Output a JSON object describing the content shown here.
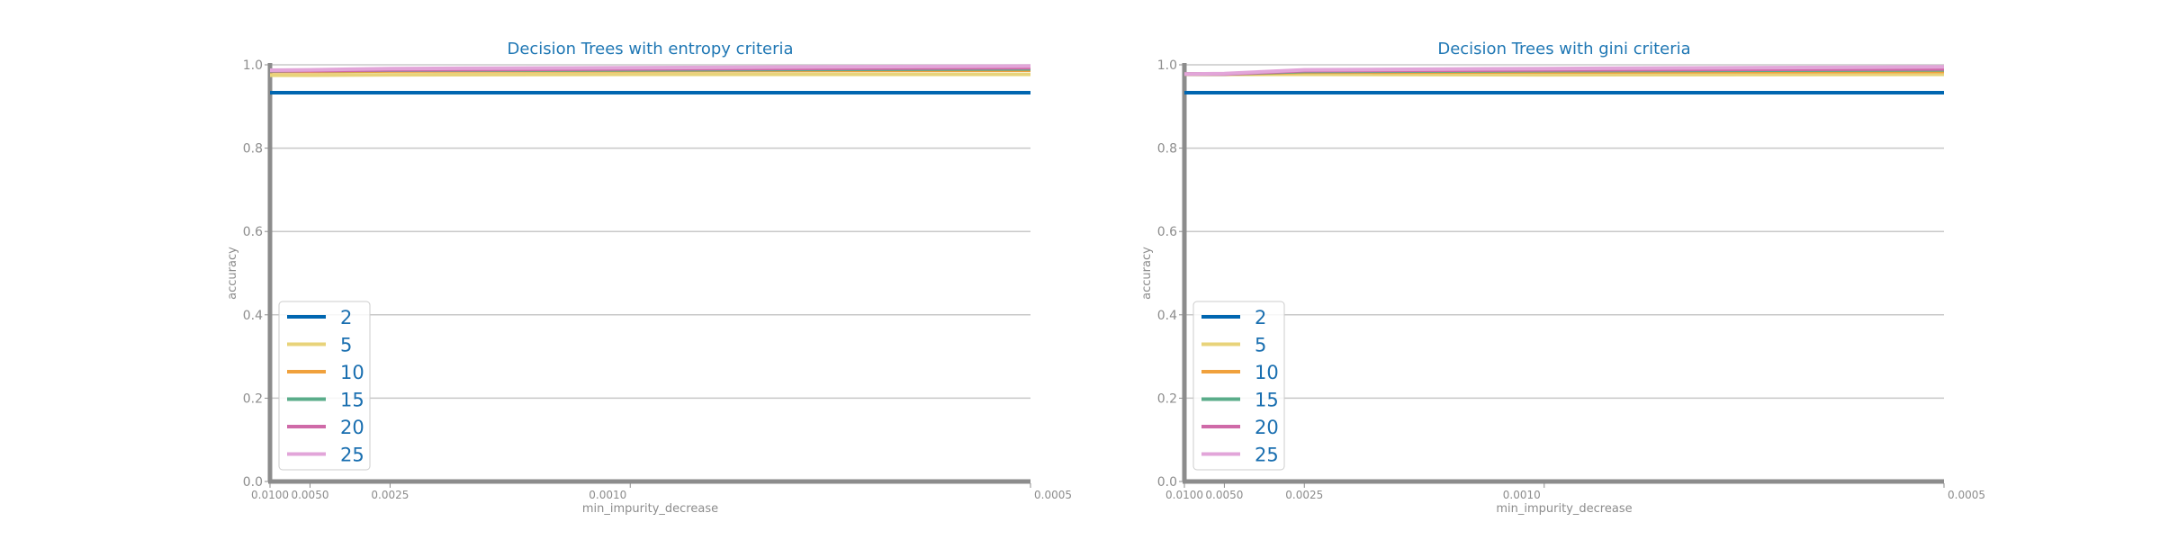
{
  "chart_data": [
    {
      "type": "line",
      "title": "Decision Trees with entropy criteria",
      "xlabel": "min_impurity_decrease",
      "ylabel": "accuracy",
      "x": [
        0.01,
        0.005,
        0.0025,
        0.001,
        0.0005
      ],
      "x_tick_labels": [
        "0.0100",
        "0.0050",
        "0.0025",
        "0.0010",
        "0.0005"
      ],
      "y_ticks": [
        0.0,
        0.2,
        0.4,
        0.6,
        0.8,
        1.0
      ],
      "y_tick_labels": [
        "0.0",
        "0.2",
        "0.4",
        "0.6",
        "0.8",
        "1.0"
      ],
      "ylim": [
        0,
        1.0
      ],
      "grid": "horizontal",
      "legend_position": "lower-left",
      "series": [
        {
          "name": "2",
          "color": "#0066b0",
          "values": [
            0.933,
            0.933,
            0.933,
            0.933,
            0.933
          ]
        },
        {
          "name": "5",
          "color": "#e8d37a",
          "values": [
            0.975,
            0.975,
            0.976,
            0.977,
            0.977
          ]
        },
        {
          "name": "10",
          "color": "#f0a13d",
          "values": [
            0.984,
            0.984,
            0.985,
            0.986,
            0.987
          ]
        },
        {
          "name": "15",
          "color": "#5aac8a",
          "values": [
            0.985,
            0.986,
            0.987,
            0.988,
            0.99
          ]
        },
        {
          "name": "20",
          "color": "#cf6aa8",
          "values": [
            0.986,
            0.986,
            0.988,
            0.99,
            0.993
          ]
        },
        {
          "name": "25",
          "color": "#e2a5d9",
          "values": [
            0.987,
            0.988,
            0.991,
            0.993,
            0.997
          ]
        }
      ]
    },
    {
      "type": "line",
      "title": "Decision Trees with gini criteria",
      "xlabel": "min_impurity_decrease",
      "ylabel": "accuracy",
      "x": [
        0.01,
        0.005,
        0.0025,
        0.001,
        0.0005
      ],
      "x_tick_labels": [
        "0.0100",
        "0.0050",
        "0.0025",
        "0.0010",
        "0.0005"
      ],
      "y_ticks": [
        0.0,
        0.2,
        0.4,
        0.6,
        0.8,
        1.0
      ],
      "y_tick_labels": [
        "0.0",
        "0.2",
        "0.4",
        "0.6",
        "0.8",
        "1.0"
      ],
      "ylim": [
        0,
        1.0
      ],
      "grid": "horizontal",
      "legend_position": "lower-left",
      "series": [
        {
          "name": "2",
          "color": "#0066b0",
          "values": [
            0.933,
            0.933,
            0.933,
            0.933,
            0.933
          ]
        },
        {
          "name": "5",
          "color": "#e8d37a",
          "values": [
            0.977,
            0.977,
            0.977,
            0.976,
            0.977
          ]
        },
        {
          "name": "10",
          "color": "#f0a13d",
          "values": [
            0.978,
            0.978,
            0.982,
            0.983,
            0.984
          ]
        },
        {
          "name": "15",
          "color": "#5aac8a",
          "values": [
            0.978,
            0.978,
            0.984,
            0.986,
            0.988
          ]
        },
        {
          "name": "20",
          "color": "#cf6aa8",
          "values": [
            0.978,
            0.978,
            0.986,
            0.988,
            0.99
          ]
        },
        {
          "name": "25",
          "color": "#e2a5d9",
          "values": [
            0.978,
            0.979,
            0.988,
            0.991,
            0.995
          ]
        }
      ]
    }
  ]
}
